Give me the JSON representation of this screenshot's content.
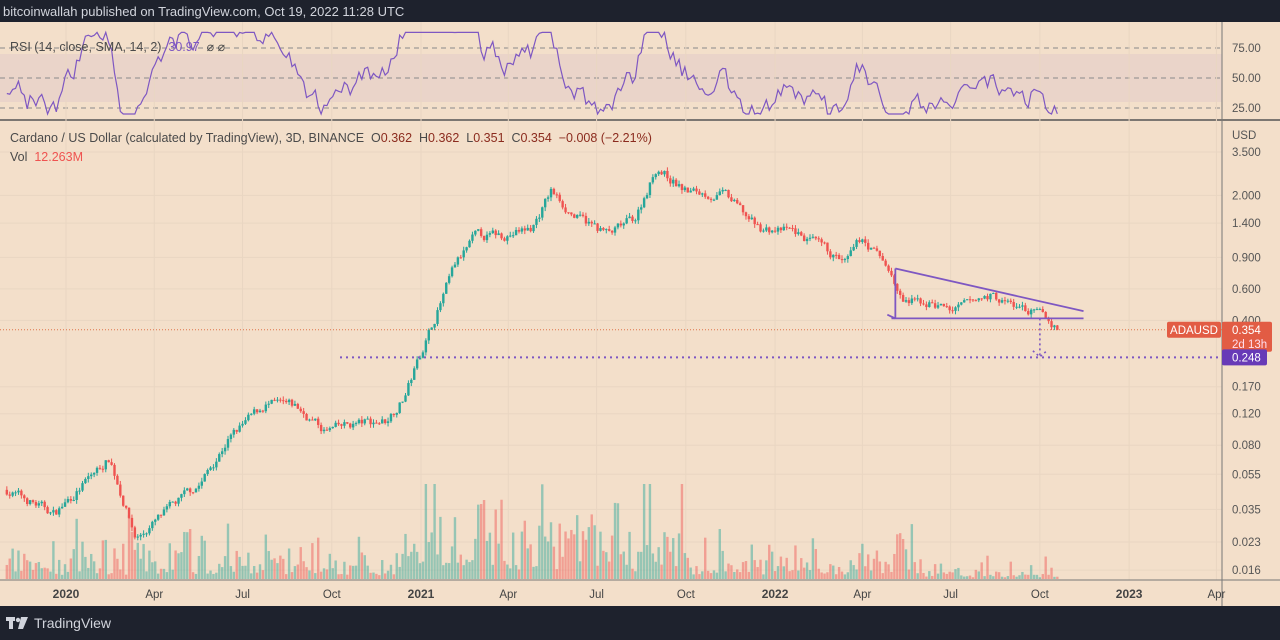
{
  "header": {
    "published": "bitcoinwallah published on TradingView.com, Oct 19, 2022 11:28 UTC"
  },
  "footer": {
    "brand": "TradingView"
  },
  "rsi": {
    "label": "RSI (14, close, SMA, 14, 2)",
    "value": "30.97",
    "icons": [
      "⌀",
      "⌀"
    ],
    "levels": [
      "75.00",
      "50.00",
      "25.00"
    ],
    "color": "#7e57c2"
  },
  "legend": {
    "symbol": "Cardano / US Dollar (calculated by TradingView), 3D, BINANCE",
    "o_label": "O",
    "o": "0.362",
    "h_label": "H",
    "h": "0.362",
    "l_label": "L",
    "l": "0.351",
    "c_label": "C",
    "c": "0.354",
    "change": "−0.008 (−2.21%)",
    "vol_label": "Vol",
    "vol": "12.263M"
  },
  "price_axis": {
    "currency": "USD",
    "ticks": [
      "3.500",
      "2.000",
      "1.400",
      "0.900",
      "0.600",
      "0.400",
      "0.170",
      "0.120",
      "0.080",
      "0.055",
      "0.035",
      "0.023",
      "0.016"
    ]
  },
  "time_axis": {
    "ticks": [
      "2020",
      "Apr",
      "Jul",
      "Oct",
      "2021",
      "Apr",
      "Jul",
      "Oct",
      "2022",
      "Apr",
      "Jul",
      "Oct",
      "2023",
      "Apr"
    ]
  },
  "tags": {
    "symbol": "ADAUSD",
    "last": "0.354",
    "countdown": "2d 13h",
    "target": "0.248"
  },
  "colors": {
    "up": "#26a69a",
    "down": "#ef5350",
    "drawing": "#7e57c2",
    "price_line": "#e0744a"
  },
  "chart_data": {
    "type": "candlestick",
    "title": "Cardano / US Dollar (calculated by TradingView), 3D, BINANCE",
    "y_scale": "log",
    "ylim": [
      0.016,
      3.5
    ],
    "grid": true,
    "xlim": [
      "2019-11-01",
      "2023-04-30"
    ],
    "close_path": [
      [
        "2019-11-01",
        0.045
      ],
      [
        "2019-12-20",
        0.033
      ],
      [
        "2020-02-15",
        0.068
      ],
      [
        "2020-03-13",
        0.024
      ],
      [
        "2020-04-15",
        0.034
      ],
      [
        "2020-05-20",
        0.05
      ],
      [
        "2020-06-15",
        0.085
      ],
      [
        "2020-07-25",
        0.135
      ],
      [
        "2020-08-25",
        0.13
      ],
      [
        "2020-09-25",
        0.095
      ],
      [
        "2020-10-25",
        0.105
      ],
      [
        "2020-11-25",
        0.11
      ],
      [
        "2020-12-15",
        0.15
      ],
      [
        "2021-01-05",
        0.3
      ],
      [
        "2021-02-05",
        0.8
      ],
      [
        "2021-02-25",
        1.15
      ],
      [
        "2021-03-25",
        1.2
      ],
      [
        "2021-04-25",
        1.3
      ],
      [
        "2021-05-15",
        2.1
      ],
      [
        "2021-06-10",
        1.5
      ],
      [
        "2021-07-15",
        1.2
      ],
      [
        "2021-08-10",
        1.5
      ],
      [
        "2021-09-01",
        2.9
      ],
      [
        "2021-10-01",
        2.1
      ],
      [
        "2021-11-10",
        2.0
      ],
      [
        "2021-12-15",
        1.3
      ],
      [
        "2022-01-20",
        1.25
      ],
      [
        "2022-02-25",
        0.95
      ],
      [
        "2022-03-15",
        0.82
      ],
      [
        "2022-04-01",
        1.15
      ],
      [
        "2022-04-28",
        0.78
      ],
      [
        "2022-05-12",
        0.5
      ],
      [
        "2022-06-10",
        0.5
      ],
      [
        "2022-07-05",
        0.45
      ],
      [
        "2022-08-10",
        0.55
      ],
      [
        "2022-09-10",
        0.47
      ],
      [
        "2022-10-05",
        0.42
      ],
      [
        "2022-10-19",
        0.354
      ]
    ],
    "last_price": 0.354,
    "target_price": 0.248,
    "triangle": {
      "upper": [
        [
          "2022-05-05",
          0.78
        ],
        [
          "2022-11-15",
          0.45
        ]
      ],
      "support": 0.41
    }
  }
}
